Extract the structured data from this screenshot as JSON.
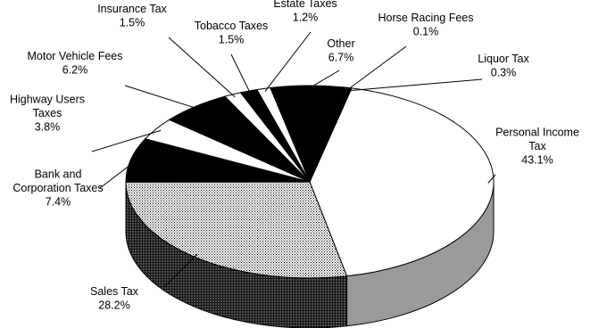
{
  "chart_data": {
    "type": "pie",
    "style": "3d-exploded-none",
    "slices": [
      {
        "label": "Personal Income Tax",
        "lines": [
          "Personal Income",
          "Tax"
        ],
        "pct": "43.1%",
        "value": 43.1,
        "fill": "white"
      },
      {
        "label": "Sales Tax",
        "lines": [
          "Sales Tax"
        ],
        "pct": "28.2%",
        "value": 28.2,
        "fill": "crosshatch"
      },
      {
        "label": "Bank and Corporation Taxes",
        "lines": [
          "Bank and",
          "Corporation Taxes"
        ],
        "pct": "7.4%",
        "value": 7.4,
        "fill": "black"
      },
      {
        "label": "Highway Users Taxes",
        "lines": [
          "Highway Users",
          "Taxes"
        ],
        "pct": "3.8%",
        "value": 3.8,
        "fill": "white"
      },
      {
        "label": "Motor Vehicle Fees",
        "lines": [
          "Motor Vehicle Fees"
        ],
        "pct": "6.2%",
        "value": 6.2,
        "fill": "black"
      },
      {
        "label": "Insurance Tax",
        "lines": [
          "Insurance Tax"
        ],
        "pct": "1.5%",
        "value": 1.5,
        "fill": "white"
      },
      {
        "label": "Tobacco Taxes",
        "lines": [
          "Tobacco Taxes"
        ],
        "pct": "1.5%",
        "value": 1.5,
        "fill": "black"
      },
      {
        "label": "Estate Taxes",
        "lines": [
          "Estate Taxes"
        ],
        "pct": "1.2%",
        "value": 1.2,
        "fill": "white"
      },
      {
        "label": "Other",
        "lines": [
          "Other"
        ],
        "pct": "6.7%",
        "value": 6.7,
        "fill": "black"
      },
      {
        "label": "Horse Racing Fees",
        "lines": [
          "Horse Racing Fees"
        ],
        "pct": "0.1%",
        "value": 0.1,
        "fill": "white"
      },
      {
        "label": "Liquor Tax",
        "lines": [
          "Liquor Tax"
        ],
        "pct": "0.3%",
        "value": 0.3,
        "fill": "black"
      }
    ],
    "colors": {
      "background": "#ffffff",
      "stroke": "#000000",
      "white_side": "#9a9a9a"
    }
  }
}
